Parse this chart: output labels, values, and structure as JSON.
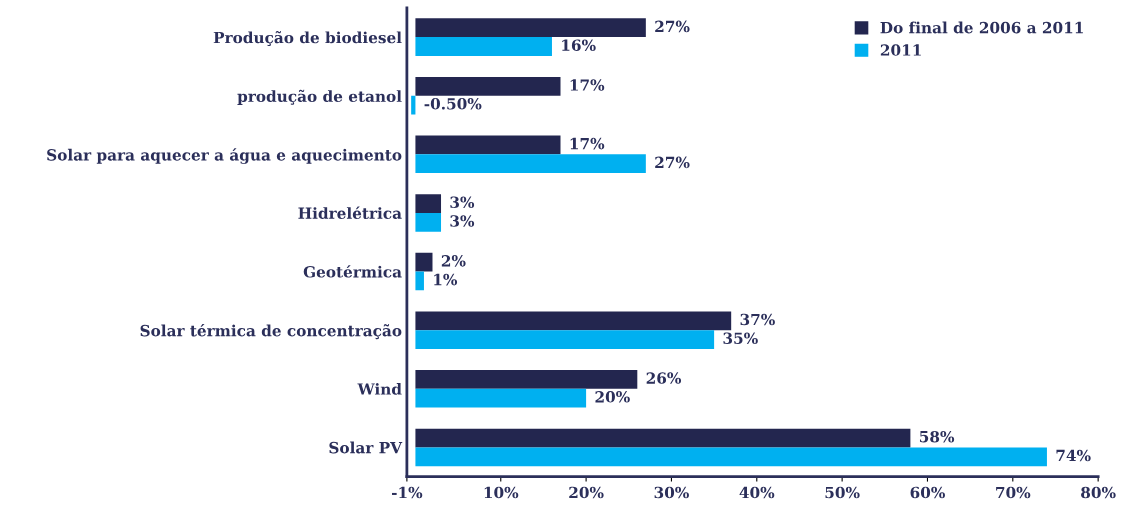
{
  "chart_data": {
    "type": "bar",
    "orientation": "horizontal",
    "categories": [
      "Produção de biodiesel",
      "produção de etanol",
      "Solar para aquecer a água e aquecimento",
      "Hidrelétrica",
      "Geotérmica",
      "Solar térmica de concentração",
      "Wind",
      "Solar PV"
    ],
    "series": [
      {
        "name": "Do final de 2006 a 2011",
        "color": "#23264f",
        "values": [
          27,
          17,
          17,
          3,
          2,
          37,
          26,
          58
        ],
        "value_labels": [
          "27%",
          "17%",
          "17%",
          "3%",
          "2%",
          "37%",
          "26%",
          "58%"
        ]
      },
      {
        "name": "2011",
        "color": "#00b0f0",
        "values": [
          16,
          -0.5,
          27,
          3,
          1,
          35,
          20,
          74
        ],
        "value_labels": [
          "16%",
          "-0.50%",
          "27%",
          "3%",
          "1%",
          "35%",
          "20%",
          "74%"
        ]
      }
    ],
    "xlim": [
      -1,
      80
    ],
    "xticks": [
      {
        "value": -1,
        "label": "-1%"
      },
      {
        "value": 10,
        "label": "10%"
      },
      {
        "value": 20,
        "label": "20%"
      },
      {
        "value": 30,
        "label": "30%"
      },
      {
        "value": 40,
        "label": "40%"
      },
      {
        "value": 50,
        "label": "50%"
      },
      {
        "value": 60,
        "label": "60%"
      },
      {
        "value": 70,
        "label": "70%"
      },
      {
        "value": 80,
        "label": "80%"
      }
    ],
    "grid": false,
    "legend": "top right"
  }
}
